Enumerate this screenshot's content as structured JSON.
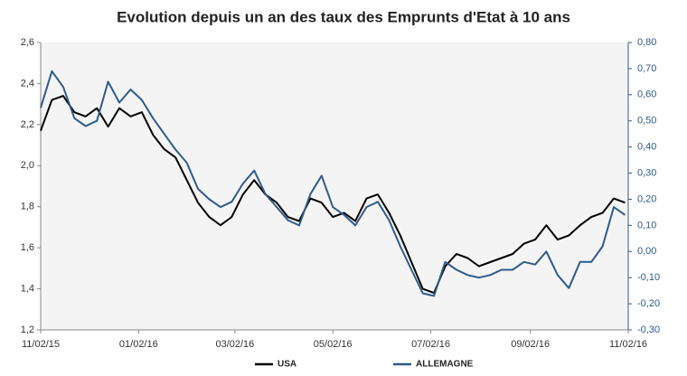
{
  "chart_data": {
    "type": "line",
    "title": "Evolution depuis un an des taux des Emprunts d'Etat à 10 ans",
    "x": [
      "2015-11-02",
      "2015-11-09",
      "2015-11-16",
      "2015-11-23",
      "2015-11-30",
      "2015-12-07",
      "2015-12-14",
      "2015-12-21",
      "2015-12-28",
      "2016-01-04",
      "2016-01-11",
      "2016-01-18",
      "2016-01-25",
      "2016-02-01",
      "2016-02-08",
      "2016-02-15",
      "2016-02-22",
      "2016-02-29",
      "2016-03-07",
      "2016-03-14",
      "2016-03-21",
      "2016-03-28",
      "2016-04-04",
      "2016-04-11",
      "2016-04-18",
      "2016-04-25",
      "2016-05-02",
      "2016-05-09",
      "2016-05-16",
      "2016-05-23",
      "2016-05-30",
      "2016-06-06",
      "2016-06-13",
      "2016-06-20",
      "2016-06-27",
      "2016-07-04",
      "2016-07-11",
      "2016-07-18",
      "2016-07-25",
      "2016-08-01",
      "2016-08-08",
      "2016-08-15",
      "2016-08-22",
      "2016-08-29",
      "2016-09-05",
      "2016-09-12",
      "2016-09-19",
      "2016-09-26",
      "2016-10-03",
      "2016-10-10",
      "2016-10-17",
      "2016-10-24",
      "2016-10-31"
    ],
    "series": [
      {
        "name": "USA",
        "color": "#000000",
        "values": [
          2.17,
          2.32,
          2.34,
          2.26,
          2.24,
          2.28,
          2.19,
          2.28,
          2.24,
          2.26,
          2.15,
          2.08,
          2.04,
          1.93,
          1.82,
          1.75,
          1.71,
          1.75,
          1.86,
          1.93,
          1.86,
          1.82,
          1.75,
          1.73,
          1.84,
          1.82,
          1.75,
          1.77,
          1.73,
          1.84,
          1.86,
          1.77,
          1.66,
          1.53,
          1.4,
          1.38,
          1.51,
          1.57,
          1.55,
          1.51,
          1.53,
          1.55,
          1.57,
          1.62,
          1.64,
          1.71,
          1.64,
          1.66,
          1.71,
          1.75,
          1.77,
          1.84,
          1.82
        ]
      },
      {
        "name": "ALLEMAGNE",
        "color": "#2e5b8c",
        "axis": "y2",
        "values": [
          0.55,
          0.69,
          0.63,
          0.51,
          0.48,
          0.5,
          0.65,
          0.57,
          0.62,
          0.58,
          0.51,
          0.45,
          0.39,
          0.34,
          0.24,
          0.2,
          0.17,
          0.19,
          0.26,
          0.31,
          0.22,
          0.17,
          0.12,
          0.1,
          0.22,
          0.29,
          0.17,
          0.14,
          0.1,
          0.17,
          0.19,
          0.12,
          0.02,
          -0.07,
          -0.16,
          -0.17,
          -0.04,
          -0.07,
          -0.09,
          -0.1,
          -0.09,
          -0.07,
          -0.07,
          -0.04,
          -0.05,
          0.0,
          -0.09,
          -0.14,
          -0.04,
          -0.04,
          0.02,
          0.17,
          0.14
        ]
      }
    ],
    "xlim": [
      "2015-11-02",
      "2016-11-02"
    ],
    "xticks": [
      {
        "value": "2015-11-02",
        "label": "11/02/15"
      },
      {
        "value": "2016-01-02",
        "label": "01/02/16"
      },
      {
        "value": "2016-03-02",
        "label": "03/02/16"
      },
      {
        "value": "2016-05-02",
        "label": "05/02/16"
      },
      {
        "value": "2016-07-02",
        "label": "07/02/16"
      },
      {
        "value": "2016-09-02",
        "label": "09/02/16"
      },
      {
        "value": "2016-11-02",
        "label": "11/02/16"
      }
    ],
    "ylim": [
      1.2,
      2.6
    ],
    "yticks": [
      {
        "value": 1.2,
        "label": "1,2"
      },
      {
        "value": 1.4,
        "label": "1,4"
      },
      {
        "value": 1.6,
        "label": "1,6"
      },
      {
        "value": 1.8,
        "label": "1,8"
      },
      {
        "value": 2.0,
        "label": "2,0"
      },
      {
        "value": 2.2,
        "label": "2,2"
      },
      {
        "value": 2.4,
        "label": "2,4"
      },
      {
        "value": 2.6,
        "label": "2,6"
      }
    ],
    "y2lim": [
      -0.3,
      0.8
    ],
    "y2ticks": [
      {
        "value": -0.3,
        "label": "-0,30"
      },
      {
        "value": -0.2,
        "label": "-0,20"
      },
      {
        "value": -0.1,
        "label": "-0,10"
      },
      {
        "value": 0,
        "label": "0,00"
      },
      {
        "value": 0.1,
        "label": "0,10"
      },
      {
        "value": 0.2,
        "label": "0,20"
      },
      {
        "value": 0.3,
        "label": "0,30"
      },
      {
        "value": 0.4,
        "label": "0,40"
      },
      {
        "value": 0.5,
        "label": "0,50"
      },
      {
        "value": 0.6,
        "label": "0,60"
      },
      {
        "value": 0.7,
        "label": "0,70"
      },
      {
        "value": 0.8,
        "label": "0,80"
      }
    ],
    "legend": "bottom"
  }
}
